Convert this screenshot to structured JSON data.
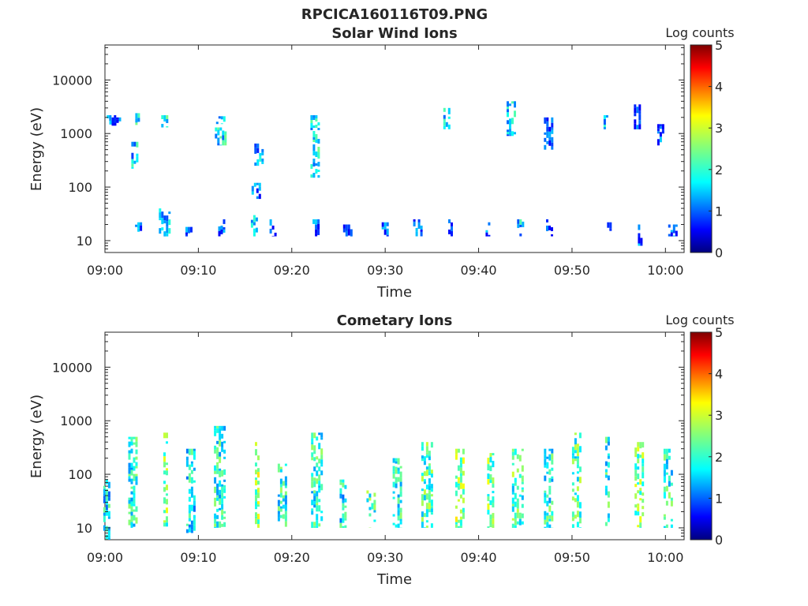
{
  "figure_title": "RPCICA160116T09.PNG",
  "chart_data": [
    {
      "type": "heatmap",
      "title": "Solar Wind Ions",
      "xlabel": "Time",
      "ylabel": "Energy (eV)",
      "y_scale": "log",
      "x_ticks": [
        "09:00",
        "09:10",
        "09:20",
        "09:30",
        "09:40",
        "09:50",
        "10:00"
      ],
      "y_ticks": [
        "10",
        "100",
        "1000",
        "10000"
      ],
      "ylim": [
        6,
        45000
      ],
      "xlim": [
        "09:00",
        "10:02"
      ],
      "colorbar": {
        "label": "Log counts",
        "ticks": [
          "0",
          "1",
          "2",
          "3",
          "4",
          "5"
        ],
        "range": [
          0,
          5
        ],
        "colormap": "jet"
      },
      "grid": false,
      "events": [
        {
          "t": 0.7,
          "e_lo": 1500,
          "e_hi": 2200,
          "c": 1.0
        },
        {
          "t": 1.1,
          "e_lo": 1400,
          "e_hi": 2000,
          "c": 1.0
        },
        {
          "t": 3.2,
          "e_lo": 220,
          "e_hi": 700,
          "c": 1.6
        },
        {
          "t": 3.5,
          "e_lo": 1400,
          "e_hi": 2400,
          "c": 1.8
        },
        {
          "t": 3.6,
          "e_lo": 12,
          "e_hi": 22,
          "c": 1.0
        },
        {
          "t": 6.4,
          "e_lo": 1300,
          "e_hi": 2200,
          "c": 1.8
        },
        {
          "t": 6.4,
          "e_lo": 12,
          "e_hi": 40,
          "c": 1.4
        },
        {
          "t": 9.0,
          "e_lo": 12,
          "e_hi": 18,
          "c": 1.0
        },
        {
          "t": 12.4,
          "e_lo": 600,
          "e_hi": 1300,
          "c": 1.8
        },
        {
          "t": 12.4,
          "e_lo": 1500,
          "e_hi": 2100,
          "c": 1.6
        },
        {
          "t": 12.5,
          "e_lo": 12,
          "e_hi": 25,
          "c": 1.0
        },
        {
          "t": 16.0,
          "e_lo": 12,
          "e_hi": 30,
          "c": 1.6
        },
        {
          "t": 16.2,
          "e_lo": 60,
          "e_hi": 120,
          "c": 1.0
        },
        {
          "t": 16.5,
          "e_lo": 250,
          "e_hi": 650,
          "c": 1.4
        },
        {
          "t": 18.0,
          "e_lo": 12,
          "e_hi": 25,
          "c": 1.0
        },
        {
          "t": 22.5,
          "e_lo": 150,
          "e_hi": 2200,
          "c": 1.8
        },
        {
          "t": 22.6,
          "e_lo": 12,
          "e_hi": 25,
          "c": 1.0
        },
        {
          "t": 26.0,
          "e_lo": 12,
          "e_hi": 20,
          "c": 1.0
        },
        {
          "t": 30.0,
          "e_lo": 12,
          "e_hi": 22,
          "c": 1.0
        },
        {
          "t": 33.5,
          "e_lo": 12,
          "e_hi": 25,
          "c": 1.0
        },
        {
          "t": 36.6,
          "e_lo": 1200,
          "e_hi": 3000,
          "c": 1.6
        },
        {
          "t": 37.0,
          "e_lo": 12,
          "e_hi": 25,
          "c": 1.0
        },
        {
          "t": 41.0,
          "e_lo": 12,
          "e_hi": 22,
          "c": 1.0
        },
        {
          "t": 43.5,
          "e_lo": 900,
          "e_hi": 4000,
          "c": 1.6
        },
        {
          "t": 44.5,
          "e_lo": 12,
          "e_hi": 25,
          "c": 1.6
        },
        {
          "t": 47.5,
          "e_lo": 500,
          "e_hi": 2000,
          "c": 1.0
        },
        {
          "t": 47.6,
          "e_lo": 12,
          "e_hi": 25,
          "c": 1.0
        },
        {
          "t": 53.5,
          "e_lo": 1200,
          "e_hi": 2200,
          "c": 1.6
        },
        {
          "t": 54.0,
          "e_lo": 12,
          "e_hi": 22,
          "c": 1.0
        },
        {
          "t": 57.0,
          "e_lo": 1200,
          "e_hi": 3500,
          "c": 1.0
        },
        {
          "t": 57.3,
          "e_lo": 8,
          "e_hi": 20,
          "c": 1.0
        },
        {
          "t": 59.5,
          "e_lo": 500,
          "e_hi": 1500,
          "c": 1.0
        },
        {
          "t": 60.8,
          "e_lo": 12,
          "e_hi": 20,
          "c": 1.0
        }
      ]
    },
    {
      "type": "heatmap",
      "title": "Cometary Ions",
      "xlabel": "Time",
      "ylabel": "Energy (eV)",
      "y_scale": "log",
      "x_ticks": [
        "09:00",
        "09:10",
        "09:20",
        "09:30",
        "09:40",
        "09:50",
        "10:00"
      ],
      "y_ticks": [
        "10",
        "100",
        "1000",
        "10000"
      ],
      "ylim": [
        6,
        45000
      ],
      "xlim": [
        "09:00",
        "10:02"
      ],
      "colorbar": {
        "label": "Log counts",
        "ticks": [
          "0",
          "1",
          "2",
          "3",
          "4",
          "5"
        ],
        "range": [
          0,
          5
        ],
        "colormap": "jet"
      },
      "grid": false,
      "events": [
        {
          "t": 0.2,
          "e_lo": 6,
          "e_hi": 80,
          "c": 1.8
        },
        {
          "t": 3.0,
          "e_lo": 10,
          "e_hi": 500,
          "c": 2.0
        },
        {
          "t": 6.5,
          "e_lo": 10,
          "e_hi": 600,
          "c": 2.4
        },
        {
          "t": 9.2,
          "e_lo": 8,
          "e_hi": 300,
          "c": 1.8
        },
        {
          "t": 12.3,
          "e_lo": 10,
          "e_hi": 800,
          "c": 2.0
        },
        {
          "t": 16.3,
          "e_lo": 10,
          "e_hi": 400,
          "c": 2.6
        },
        {
          "t": 19.0,
          "e_lo": 10,
          "e_hi": 200,
          "c": 2.0
        },
        {
          "t": 22.7,
          "e_lo": 10,
          "e_hi": 600,
          "c": 2.0
        },
        {
          "t": 25.5,
          "e_lo": 10,
          "e_hi": 80,
          "c": 1.8
        },
        {
          "t": 28.5,
          "e_lo": 10,
          "e_hi": 50,
          "c": 2.2
        },
        {
          "t": 31.3,
          "e_lo": 10,
          "e_hi": 200,
          "c": 2.0
        },
        {
          "t": 34.5,
          "e_lo": 10,
          "e_hi": 400,
          "c": 2.2
        },
        {
          "t": 38.0,
          "e_lo": 10,
          "e_hi": 300,
          "c": 2.6
        },
        {
          "t": 41.3,
          "e_lo": 10,
          "e_hi": 250,
          "c": 2.4
        },
        {
          "t": 44.2,
          "e_lo": 10,
          "e_hi": 300,
          "c": 2.2
        },
        {
          "t": 47.5,
          "e_lo": 10,
          "e_hi": 300,
          "c": 2.0
        },
        {
          "t": 50.5,
          "e_lo": 10,
          "e_hi": 600,
          "c": 2.2
        },
        {
          "t": 53.8,
          "e_lo": 10,
          "e_hi": 500,
          "c": 2.0
        },
        {
          "t": 57.2,
          "e_lo": 10,
          "e_hi": 400,
          "c": 2.4
        },
        {
          "t": 60.3,
          "e_lo": 10,
          "e_hi": 300,
          "c": 2.0
        }
      ]
    }
  ]
}
